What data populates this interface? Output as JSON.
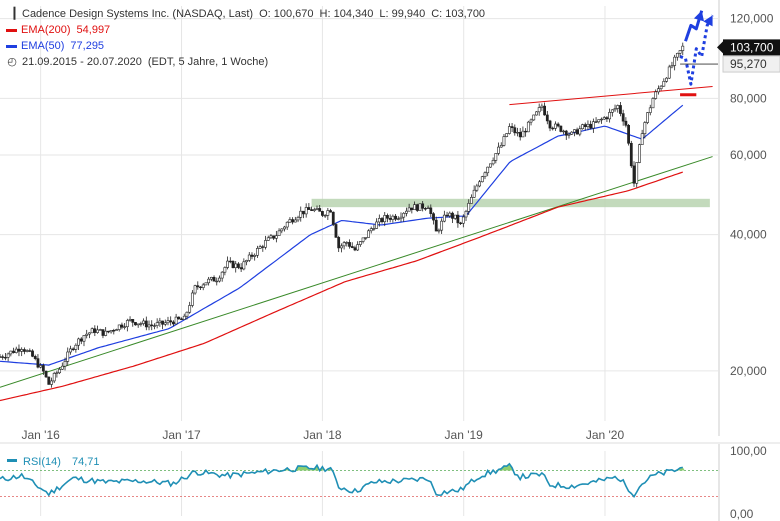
{
  "chart_data": {
    "type": "candlestick",
    "header": {
      "title": "Cadence Design Systems Inc. (NASDAQ, Last)",
      "ohlc": [
        "O: 100,670",
        "H: 104,340",
        "L: 99,940",
        "C: 103,700"
      ],
      "ema200": {
        "label": "EMA(200)",
        "value": "54,997",
        "color": "#e01010"
      },
      "ema50": {
        "label": "EMA(50)",
        "value": "77,295",
        "color": "#1f3fe0"
      },
      "range": "21.09.2015 - 20.07.2020",
      "period": "(EDT, 5 Jahre, 1 Woche)"
    },
    "price_axis": {
      "scale": "log",
      "ylim": [
        15500,
        128000
      ],
      "ticks": [
        "120,000",
        "80,000",
        "60,000",
        "40,000",
        "20,000"
      ],
      "tick_values": [
        120000,
        80000,
        60000,
        40000,
        20000
      ],
      "last_price": {
        "label": "103,700",
        "value": 103700
      },
      "line_price": {
        "label": "95,270",
        "value": 95270
      }
    },
    "x_axis": {
      "ticks": [
        "Jan '16",
        "Jan '17",
        "Jan '18",
        "Jan '19",
        "Jan '20"
      ],
      "tick_dates": [
        "2016-01-04",
        "2017-01-02",
        "2018-01-01",
        "2019-01-01",
        "2020-01-01"
      ]
    },
    "close_series": {
      "name": "Cadence Design Systems Inc.",
      "points": [
        [
          "2015-09-21",
          21500
        ],
        [
          "2015-10-19",
          22000
        ],
        [
          "2015-11-16",
          22600
        ],
        [
          "2015-12-14",
          21500
        ],
        [
          "2016-01-11",
          19900
        ],
        [
          "2016-01-25",
          18700
        ],
        [
          "2016-02-22",
          20200
        ],
        [
          "2016-03-28",
          22700
        ],
        [
          "2016-04-25",
          24000
        ],
        [
          "2016-05-23",
          24600
        ],
        [
          "2016-06-20",
          24200
        ],
        [
          "2016-07-18",
          25000
        ],
        [
          "2016-08-22",
          25800
        ],
        [
          "2016-09-19",
          25500
        ],
        [
          "2016-10-17",
          25200
        ],
        [
          "2016-11-14",
          25400
        ],
        [
          "2016-12-12",
          25800
        ],
        [
          "2017-01-09",
          26000
        ],
        [
          "2017-02-06",
          30500
        ],
        [
          "2017-03-06",
          31500
        ],
        [
          "2017-04-03",
          32000
        ],
        [
          "2017-05-01",
          34500
        ],
        [
          "2017-06-05",
          34000
        ],
        [
          "2017-07-03",
          36000
        ],
        [
          "2017-08-07",
          38500
        ],
        [
          "2017-09-04",
          40000
        ],
        [
          "2017-10-02",
          42500
        ],
        [
          "2017-11-06",
          44800
        ],
        [
          "2017-12-04",
          45500
        ],
        [
          "2018-01-01",
          44500
        ],
        [
          "2018-01-22",
          45500
        ],
        [
          "2018-02-12",
          37500
        ],
        [
          "2018-03-05",
          38500
        ],
        [
          "2018-03-26",
          37000
        ],
        [
          "2018-04-16",
          39000
        ],
        [
          "2018-05-14",
          42000
        ],
        [
          "2018-06-11",
          43500
        ],
        [
          "2018-07-16",
          44000
        ],
        [
          "2018-08-13",
          46000
        ],
        [
          "2018-09-10",
          46000
        ],
        [
          "2018-10-01",
          46500
        ],
        [
          "2018-10-22",
          40500
        ],
        [
          "2018-11-19",
          44500
        ],
        [
          "2018-12-10",
          43500
        ],
        [
          "2018-12-24",
          42000
        ],
        [
          "2019-01-14",
          46500
        ],
        [
          "2019-02-11",
          53000
        ],
        [
          "2019-03-11",
          58000
        ],
        [
          "2019-04-08",
          63000
        ],
        [
          "2019-04-29",
          69000
        ],
        [
          "2019-05-27",
          66000
        ],
        [
          "2019-06-24",
          71000
        ],
        [
          "2019-07-22",
          77000
        ],
        [
          "2019-08-12",
          70000
        ],
        [
          "2019-09-09",
          68500
        ],
        [
          "2019-10-07",
          66500
        ],
        [
          "2019-11-04",
          69000
        ],
        [
          "2019-12-02",
          70000
        ],
        [
          "2020-01-06",
          73000
        ],
        [
          "2020-02-03",
          77000
        ],
        [
          "2020-02-24",
          70000
        ],
        [
          "2020-03-16",
          52000
        ],
        [
          "2020-04-06",
          68000
        ],
        [
          "2020-05-04",
          80000
        ],
        [
          "2020-06-01",
          88000
        ],
        [
          "2020-06-29",
          97000
        ],
        [
          "2020-07-20",
          103700
        ]
      ]
    },
    "ema200_series": {
      "points": [
        [
          "2015-09-21",
          17200
        ],
        [
          "2016-03-01",
          18500
        ],
        [
          "2016-09-01",
          20500
        ],
        [
          "2017-03-01",
          23000
        ],
        [
          "2017-09-01",
          27000
        ],
        [
          "2018-03-01",
          31500
        ],
        [
          "2018-09-01",
          35000
        ],
        [
          "2019-03-01",
          40000
        ],
        [
          "2019-09-01",
          46000
        ],
        [
          "2020-03-01",
          50000
        ],
        [
          "2020-07-20",
          54997
        ]
      ]
    },
    "ema50_series": {
      "points": [
        [
          "2015-09-21",
          21000
        ],
        [
          "2016-01-25",
          20600
        ],
        [
          "2016-06-01",
          22500
        ],
        [
          "2016-12-01",
          24800
        ],
        [
          "2017-06-01",
          30500
        ],
        [
          "2017-12-01",
          40000
        ],
        [
          "2018-02-20",
          43000
        ],
        [
          "2018-06-01",
          42000
        ],
        [
          "2018-10-01",
          43500
        ],
        [
          "2019-01-07",
          44000
        ],
        [
          "2019-05-01",
          58000
        ],
        [
          "2019-09-01",
          66000
        ],
        [
          "2020-01-01",
          69500
        ],
        [
          "2020-04-06",
          65000
        ],
        [
          "2020-07-20",
          77295
        ]
      ]
    },
    "trend_lines": [
      {
        "name": "green-support",
        "color": "#3a8a2a",
        "from": [
          "2015-09-21",
          18400
        ],
        "to": [
          "2020-10-05",
          59500
        ]
      },
      {
        "name": "red-resistance",
        "color": "#e01010",
        "from": [
          "2019-04-29",
          77500
        ],
        "to": [
          "2020-10-05",
          85000
        ]
      }
    ],
    "support_zone": {
      "from": "2017-12-04",
      "to": "2020-09-28",
      "low": 46000,
      "high": 48000,
      "color": "#b9d4b0"
    },
    "annotations": [
      {
        "name": "red-level-mark",
        "color": "#e01010",
        "from": [
          "2020-07-13",
          81500
        ],
        "to": [
          "2020-08-24",
          81500
        ]
      },
      {
        "name": "blue-arrow-up",
        "color": "#1f3fe0",
        "style": "solid",
        "path": [
          [
            "2020-07-27",
            107000
          ],
          [
            "2020-08-10",
            116000
          ],
          [
            "2020-08-24",
            114000
          ],
          [
            "2020-09-07",
            125000
          ]
        ]
      },
      {
        "name": "blue-arrow-dotted",
        "color": "#1f3fe0",
        "style": "dotted",
        "path": [
          [
            "2020-07-13",
            99000
          ],
          [
            "2020-07-27",
            98000
          ],
          [
            "2020-08-10",
            86000
          ],
          [
            "2020-08-24",
            103000
          ],
          [
            "2020-09-07",
            99000
          ],
          [
            "2020-09-21",
            116000
          ],
          [
            "2020-10-05",
            122000
          ]
        ]
      }
    ],
    "rsi": {
      "label": "RSI(14)",
      "value": "74,71",
      "color": "#1f8fb5",
      "ylim": [
        0,
        100
      ],
      "ticks": [
        "100,00",
        "0,00"
      ],
      "overbought": 70,
      "oversold": 30,
      "points": [
        [
          "2015-09-21",
          56
        ],
        [
          "2015-11-16",
          62
        ],
        [
          "2016-01-11",
          40
        ],
        [
          "2016-01-25",
          34
        ],
        [
          "2016-03-28",
          58
        ],
        [
          "2016-06-20",
          52
        ],
        [
          "2016-09-19",
          54
        ],
        [
          "2016-12-12",
          50
        ],
        [
          "2017-02-06",
          68
        ],
        [
          "2017-05-01",
          62
        ],
        [
          "2017-07-03",
          66
        ],
        [
          "2017-10-02",
          72
        ],
        [
          "2017-12-04",
          74
        ],
        [
          "2018-01-22",
          73
        ],
        [
          "2018-02-12",
          45
        ],
        [
          "2018-03-26",
          38
        ],
        [
          "2018-05-14",
          52
        ],
        [
          "2018-08-13",
          55
        ],
        [
          "2018-10-01",
          58
        ],
        [
          "2018-10-22",
          35
        ],
        [
          "2018-12-24",
          40
        ],
        [
          "2019-02-11",
          62
        ],
        [
          "2019-04-08",
          72
        ],
        [
          "2019-04-29",
          76
        ],
        [
          "2019-05-27",
          60
        ],
        [
          "2019-07-22",
          64
        ],
        [
          "2019-08-12",
          48
        ],
        [
          "2019-10-07",
          46
        ],
        [
          "2019-12-02",
          52
        ],
        [
          "2020-02-03",
          60
        ],
        [
          "2020-03-16",
          34
        ],
        [
          "2020-04-06",
          50
        ],
        [
          "2020-05-04",
          62
        ],
        [
          "2020-06-01",
          66
        ],
        [
          "2020-06-29",
          70
        ],
        [
          "2020-07-20",
          74.71
        ]
      ]
    }
  }
}
